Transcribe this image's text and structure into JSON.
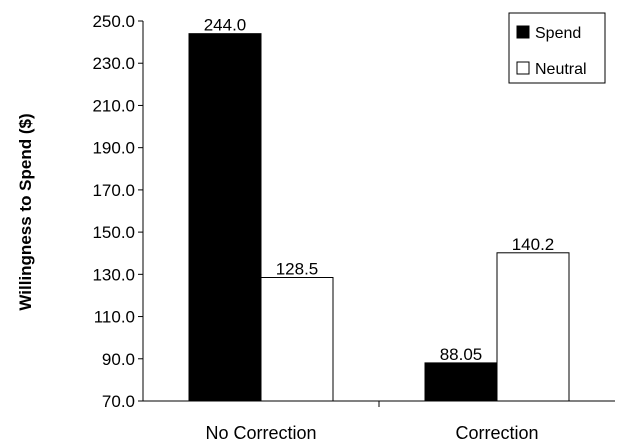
{
  "chart_data": {
    "type": "bar",
    "title": "",
    "xlabel": "",
    "ylabel": "Willingness to Spend ($)",
    "ylim": [
      70,
      250
    ],
    "yticks": [
      "250.0",
      "230.0",
      "210.0",
      "190.0",
      "170.0",
      "150.0",
      "130.0",
      "110.0",
      "90.0",
      "70.0"
    ],
    "categories": [
      "No Correction",
      "Correction"
    ],
    "series": [
      {
        "name": "Spend",
        "values": [
          244.0,
          88.05
        ],
        "labels": [
          "244.0",
          "88.05"
        ],
        "color": "#000000"
      },
      {
        "name": "Neutral",
        "values": [
          128.5,
          140.2
        ],
        "labels": [
          "128.5",
          "140.2"
        ],
        "color": "#ffffff"
      }
    ],
    "legend": "top-right",
    "grid": false
  }
}
